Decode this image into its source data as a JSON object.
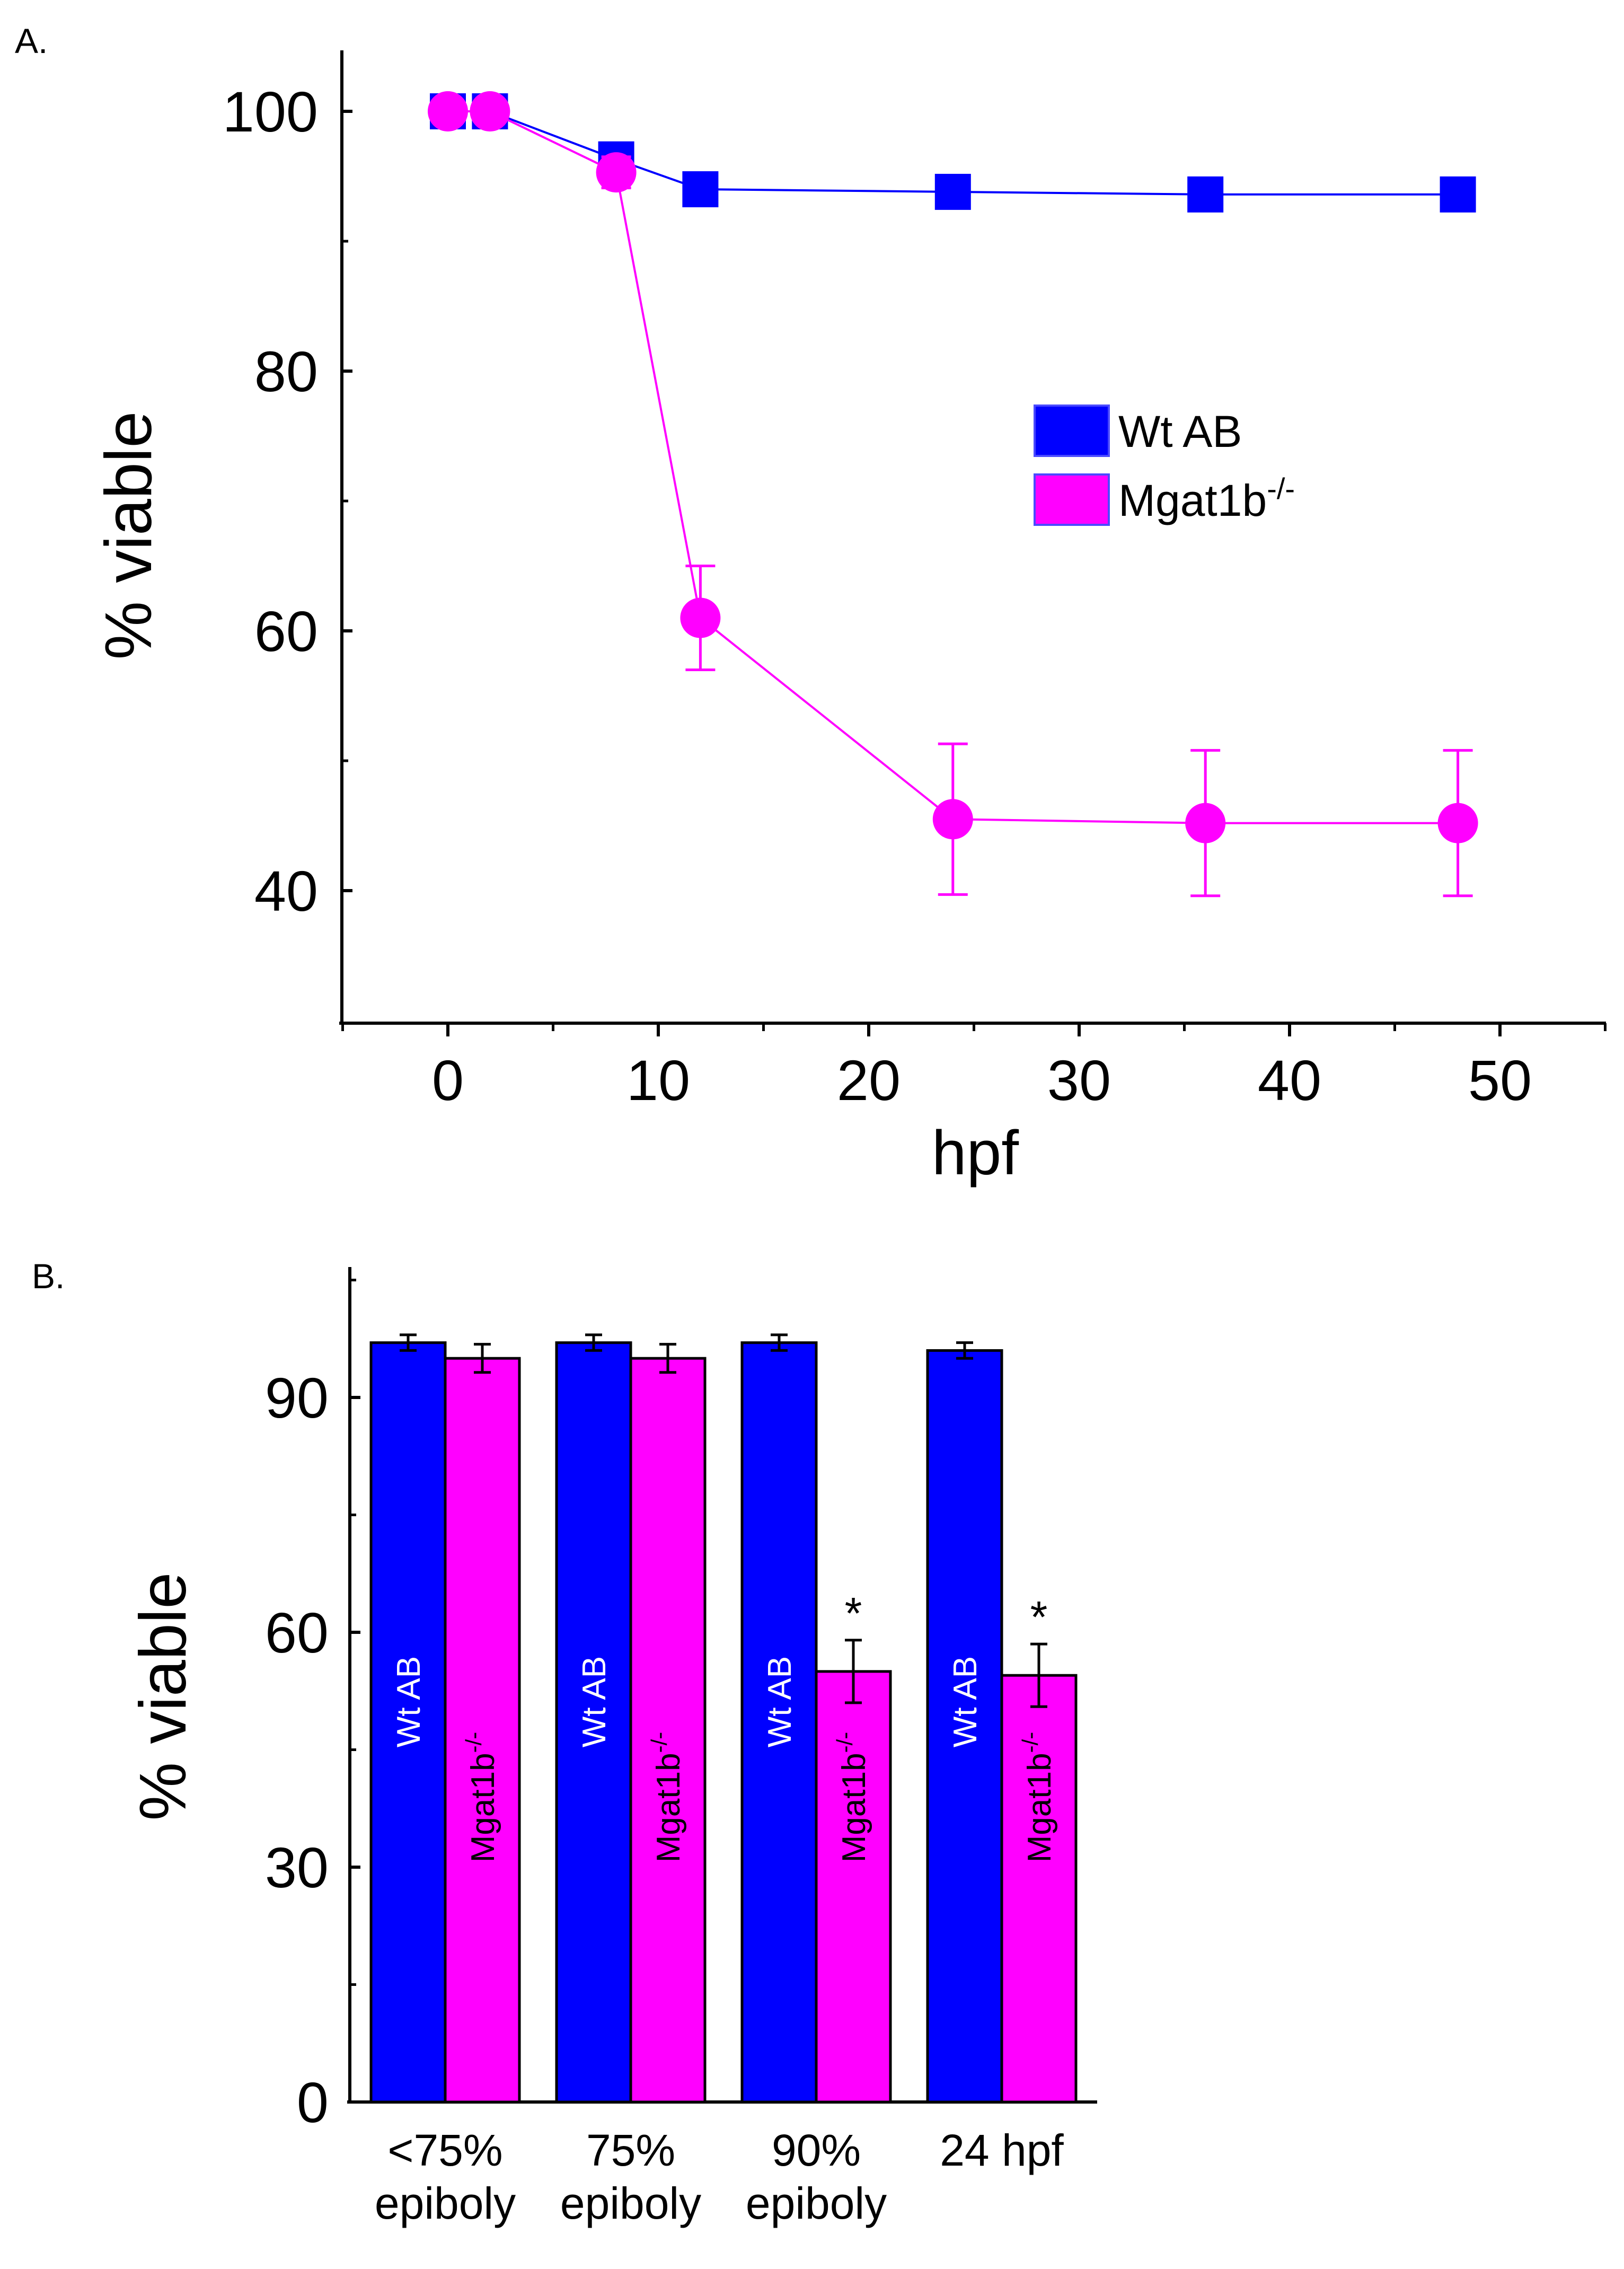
{
  "panels": {
    "a": {
      "label": "A.",
      "chart_data": {
        "type": "line",
        "xlabel": "hpf",
        "ylabel": "% viable",
        "xlim": [
          -5,
          55
        ],
        "ylim": [
          30,
          105
        ],
        "xticks": [
          "0",
          "10",
          "20",
          "30",
          "40",
          "50"
        ],
        "yticks": [
          "40",
          "60",
          "80",
          "100"
        ],
        "legend_position": "center-right",
        "series": [
          {
            "name": "Wt AB",
            "color": "#0000ff",
            "marker": "square",
            "x": [
              0,
              2,
              8,
              12,
              24,
              36,
              48
            ],
            "y": [
              100,
              100,
              96.3,
              94.0,
              93.8,
              93.6,
              93.6
            ],
            "err": [
              0,
              0,
              0,
              0,
              0,
              0,
              0
            ]
          },
          {
            "name": "Mgat1b",
            "name_sup": "-/-",
            "color": "#ff00ff",
            "marker": "circle",
            "x": [
              0,
              2,
              8,
              12,
              24,
              36,
              48
            ],
            "y": [
              100,
              100,
              95.3,
              61.0,
              45.5,
              45.2,
              45.2
            ],
            "err": [
              0,
              0,
              1.2,
              4.0,
              5.8,
              5.6,
              5.6
            ]
          }
        ]
      }
    },
    "b": {
      "label": "B.",
      "chart_data": {
        "type": "bar",
        "ylabel": "% viable",
        "ylim": [
          0,
          107
        ],
        "yticks": [
          "0",
          "30",
          "60",
          "90"
        ],
        "categories": [
          [
            "<75%",
            "epiboly"
          ],
          [
            "75%",
            "epiboly"
          ],
          [
            "90%",
            "epiboly"
          ],
          [
            "24 hpf"
          ]
        ],
        "series": [
          {
            "name": "Wt AB",
            "color": "#0000ff",
            "label_color": "#ffffff",
            "values": [
              97,
              97,
              97,
              96
            ],
            "err": [
              1,
              1,
              1,
              1
            ]
          },
          {
            "name": "Mgat1b",
            "name_sup": "-/-",
            "color": "#ff00ff",
            "label_color": "#000000",
            "values": [
              95,
              95,
              55,
              54.5
            ],
            "err": [
              1.8,
              1.8,
              4,
              4
            ]
          }
        ],
        "significance": [
          "",
          "",
          "*",
          "*"
        ]
      }
    }
  }
}
